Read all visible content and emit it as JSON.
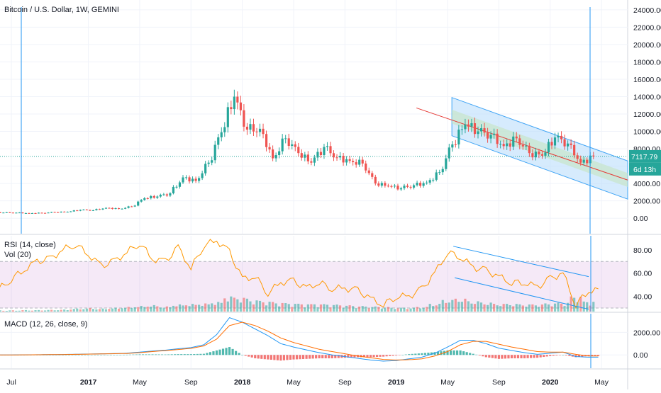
{
  "chart_data": [
    {
      "type": "candlestick",
      "title": "Bitcoin / U.S. Dollar, 1W, GEMINI",
      "yticks": [
        "24000.00",
        "22000.00",
        "20000.00",
        "18000.00",
        "16000.00",
        "14000.00",
        "12000.00",
        "10000.00",
        "8000.00",
        "6000.00",
        "4000.00",
        "2000.00",
        "0.00"
      ],
      "ylim": [
        -800,
        24800
      ],
      "grid": true,
      "last_price": "7117.79",
      "countdown": "6d 13h",
      "colors": {
        "up": "#26a69a",
        "down": "#ef5350",
        "channel_fill": "#bbdefb",
        "channel_center": "#c8e6c9",
        "regression_line": "#e53935",
        "vline": "#2196f3"
      },
      "x": [
        "2016-06",
        "2016-07",
        "2016-08",
        "2016-09",
        "2016-10",
        "2016-11",
        "2016-12",
        "2017-01",
        "2017-02",
        "2017-03",
        "2017-04",
        "2017-05",
        "2017-06",
        "2017-07",
        "2017-08",
        "2017-09",
        "2017-10",
        "2017-11",
        "2017-12",
        "2018-01",
        "2018-02",
        "2018-03",
        "2018-04",
        "2018-05",
        "2018-06",
        "2018-07",
        "2018-08",
        "2018-09",
        "2018-10",
        "2018-11",
        "2018-12",
        "2019-01",
        "2019-02",
        "2019-03",
        "2019-04",
        "2019-05",
        "2019-06",
        "2019-07",
        "2019-08",
        "2019-09",
        "2019-10",
        "2019-11",
        "2019-12",
        "2020-01",
        "2020-02",
        "2020-03",
        "2020-04"
      ],
      "series": [
        {
          "close": [
            650,
            640,
            580,
            610,
            700,
            740,
            960,
            920,
            1190,
            1080,
            1350,
            2300,
            2500,
            2870,
            4700,
            4300,
            6400,
            9900,
            14000,
            10200,
            10300,
            6900,
            9200,
            7500,
            6400,
            8200,
            7000,
            6600,
            6300,
            4000,
            3700,
            3450,
            3800,
            4100,
            5300,
            8500,
            10800,
            10000,
            9600,
            8300,
            9200,
            7500,
            7200,
            9300,
            8600,
            6400,
            7117.79
          ]
        }
      ]
    },
    {
      "type": "line",
      "title": "RSI (14, close)",
      "yticks": [
        "80.00",
        "60.00",
        "40.00"
      ],
      "ylim": [
        27,
        92
      ],
      "band": [
        30,
        70
      ],
      "x": [
        "2016-06",
        "2016-07",
        "2016-08",
        "2016-09",
        "2016-10",
        "2016-11",
        "2016-12",
        "2017-01",
        "2017-02",
        "2017-03",
        "2017-04",
        "2017-05",
        "2017-06",
        "2017-07",
        "2017-08",
        "2017-09",
        "2017-10",
        "2017-11",
        "2017-12",
        "2018-01",
        "2018-02",
        "2018-03",
        "2018-04",
        "2018-05",
        "2018-06",
        "2018-07",
        "2018-08",
        "2018-09",
        "2018-10",
        "2018-11",
        "2018-12",
        "2019-01",
        "2019-02",
        "2019-03",
        "2019-04",
        "2019-05",
        "2019-06",
        "2019-07",
        "2019-08",
        "2019-09",
        "2019-10",
        "2019-11",
        "2019-12",
        "2020-01",
        "2020-02",
        "2020-03",
        "2020-04"
      ],
      "series": [
        {
          "values": [
            46,
            55,
            63,
            70,
            72,
            80,
            85,
            76,
            66,
            70,
            78,
            86,
            72,
            70,
            82,
            64,
            84,
            88,
            78,
            55,
            57,
            43,
            52,
            53,
            47,
            52,
            47,
            47,
            45,
            38,
            33,
            40,
            40,
            46,
            60,
            78,
            74,
            65,
            62,
            57,
            52,
            52,
            48,
            55,
            60,
            33,
            45
          ]
        }
      ]
    },
    {
      "type": "bar",
      "title": "Vol (20)",
      "x": [
        "2016-06",
        "2016-07",
        "2016-08",
        "2016-09",
        "2016-10",
        "2016-11",
        "2016-12",
        "2017-01",
        "2017-02",
        "2017-03",
        "2017-04",
        "2017-05",
        "2017-06",
        "2017-07",
        "2017-08",
        "2017-09",
        "2017-10",
        "2017-11",
        "2017-12",
        "2018-01",
        "2018-02",
        "2018-03",
        "2018-04",
        "2018-05",
        "2018-06",
        "2018-07",
        "2018-08",
        "2018-09",
        "2018-10",
        "2018-11",
        "2018-12",
        "2019-01",
        "2019-02",
        "2019-03",
        "2019-04",
        "2019-05",
        "2019-06",
        "2019-07",
        "2019-08",
        "2019-09",
        "2019-10",
        "2019-11",
        "2019-12",
        "2020-01",
        "2020-02",
        "2020-03",
        "2020-04"
      ],
      "series": [
        {
          "values": [
            0.05,
            0.05,
            0.06,
            0.06,
            0.07,
            0.08,
            0.12,
            0.14,
            0.12,
            0.15,
            0.18,
            0.22,
            0.25,
            0.2,
            0.28,
            0.3,
            0.32,
            0.38,
            0.6,
            0.55,
            0.45,
            0.4,
            0.35,
            0.32,
            0.3,
            0.3,
            0.28,
            0.25,
            0.22,
            0.2,
            0.18,
            0.15,
            0.15,
            0.18,
            0.3,
            0.45,
            0.5,
            0.4,
            0.35,
            0.3,
            0.3,
            0.28,
            0.28,
            0.32,
            0.35,
            0.6,
            0.4
          ]
        }
      ]
    },
    {
      "type": "line",
      "title": "MACD (12, 26, close, 9)",
      "yticks": [
        "2000.00",
        "0.00"
      ],
      "ylim": [
        -800,
        3400
      ],
      "x": [
        "2016-06",
        "2016-07",
        "2016-08",
        "2016-09",
        "2016-10",
        "2016-11",
        "2016-12",
        "2017-01",
        "2017-02",
        "2017-03",
        "2017-04",
        "2017-05",
        "2017-06",
        "2017-07",
        "2017-08",
        "2017-09",
        "2017-10",
        "2017-11",
        "2017-12",
        "2018-01",
        "2018-02",
        "2018-03",
        "2018-04",
        "2018-05",
        "2018-06",
        "2018-07",
        "2018-08",
        "2018-09",
        "2018-10",
        "2018-11",
        "2018-12",
        "2019-01",
        "2019-02",
        "2019-03",
        "2019-04",
        "2019-05",
        "2019-06",
        "2019-07",
        "2019-08",
        "2019-09",
        "2019-10",
        "2019-11",
        "2019-12",
        "2020-01",
        "2020-02",
        "2020-03",
        "2020-04"
      ],
      "series": [
        {
          "name": "macd",
          "values": [
            0,
            5,
            10,
            20,
            30,
            40,
            60,
            80,
            100,
            120,
            150,
            250,
            350,
            420,
            550,
            650,
            900,
            1800,
            3300,
            2900,
            2300,
            1700,
            1000,
            700,
            450,
            200,
            0,
            -150,
            -300,
            -450,
            -550,
            -500,
            -350,
            -200,
            150,
            700,
            1300,
            1300,
            1000,
            600,
            400,
            200,
            50,
            150,
            250,
            -150,
            -200
          ]
        },
        {
          "name": "signal",
          "values": [
            0,
            3,
            8,
            15,
            25,
            35,
            50,
            70,
            90,
            110,
            130,
            200,
            300,
            380,
            480,
            580,
            800,
            1400,
            2600,
            2900,
            2600,
            2100,
            1500,
            1100,
            800,
            500,
            300,
            100,
            -100,
            -250,
            -400,
            -450,
            -420,
            -350,
            -100,
            300,
            900,
            1200,
            1200,
            950,
            700,
            500,
            300,
            250,
            250,
            50,
            -100
          ]
        }
      ]
    }
  ],
  "time_axis": [
    "Jul",
    "2017",
    "May",
    "Sep",
    "2018",
    "May",
    "Sep",
    "2019",
    "May",
    "Sep",
    "2020",
    "May"
  ],
  "drawings": {
    "channel": {
      "start": "2019-06",
      "end": "2020-05"
    },
    "rsi_trendlines": {
      "start": "2019-06",
      "end": "2020-04"
    },
    "vertical_lines": [
      "2016-06",
      "2020-04"
    ]
  }
}
